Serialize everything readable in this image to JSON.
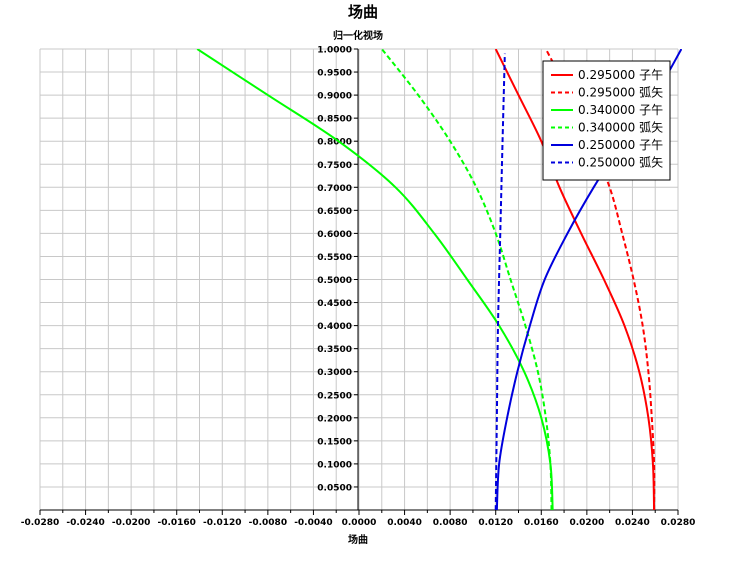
{
  "chart_data": {
    "type": "line",
    "title": "场曲",
    "subtitle": "归一化视场",
    "xlabel": "场曲",
    "ylabel": "",
    "xlim": [
      -0.028,
      0.028
    ],
    "ylim": [
      0.0,
      1.0
    ],
    "grid": true,
    "legend_position": "top-right",
    "x_ticks": [
      "-0.0280",
      "-0.0240",
      "-0.0200",
      "-0.0160",
      "-0.0120",
      "-0.0080",
      "-0.0040",
      "0.0000",
      "0.0040",
      "0.0080",
      "0.0120",
      "0.0160",
      "0.0200",
      "0.0240",
      "0.0280"
    ],
    "y_ticks": [
      "0.0500",
      "0.1000",
      "0.1500",
      "0.2000",
      "0.2500",
      "0.3000",
      "0.3500",
      "0.4000",
      "0.4500",
      "0.5000",
      "0.5500",
      "0.6000",
      "0.6500",
      "0.7000",
      "0.7500",
      "0.8000",
      "0.8500",
      "0.9000",
      "0.9500",
      "1.0000"
    ],
    "series": [
      {
        "name": "0.295000 子午",
        "color": "#ff0000",
        "dash": "solid",
        "points": [
          [
            0.0259,
            0.0
          ],
          [
            0.0258,
            0.1
          ],
          [
            0.0254,
            0.2
          ],
          [
            0.0246,
            0.3
          ],
          [
            0.0233,
            0.4
          ],
          [
            0.0215,
            0.5
          ],
          [
            0.0195,
            0.6
          ],
          [
            0.0176,
            0.7
          ],
          [
            0.016,
            0.8
          ],
          [
            0.014,
            0.9
          ],
          [
            0.012,
            1.0
          ]
        ]
      },
      {
        "name": "0.295000 弧矢",
        "color": "#ff0000",
        "dash": "dashed",
        "points": [
          [
            0.0259,
            0.0
          ],
          [
            0.0259,
            0.1
          ],
          [
            0.0257,
            0.2
          ],
          [
            0.0254,
            0.3
          ],
          [
            0.0249,
            0.4
          ],
          [
            0.0241,
            0.5
          ],
          [
            0.0231,
            0.6
          ],
          [
            0.022,
            0.7
          ],
          [
            0.0203,
            0.8
          ],
          [
            0.0185,
            0.9
          ],
          [
            0.0164,
            1.0
          ]
        ]
      },
      {
        "name": "0.340000 子午",
        "color": "#00ff00",
        "dash": "solid",
        "points": [
          [
            0.017,
            0.0
          ],
          [
            0.0168,
            0.1
          ],
          [
            0.016,
            0.2
          ],
          [
            0.0145,
            0.3
          ],
          [
            0.0123,
            0.4
          ],
          [
            0.0095,
            0.5
          ],
          [
            0.0066,
            0.6
          ],
          [
            0.0032,
            0.7
          ],
          [
            -0.0018,
            0.8
          ],
          [
            -0.008,
            0.9
          ],
          [
            -0.0142,
            1.0
          ]
        ]
      },
      {
        "name": "0.340000 弧矢",
        "color": "#00ff00",
        "dash": "dashed",
        "points": [
          [
            0.0169,
            0.0
          ],
          [
            0.0168,
            0.1
          ],
          [
            0.0164,
            0.2
          ],
          [
            0.0157,
            0.3
          ],
          [
            0.0146,
            0.4
          ],
          [
            0.0133,
            0.5
          ],
          [
            0.012,
            0.6
          ],
          [
            0.0103,
            0.7
          ],
          [
            0.008,
            0.8
          ],
          [
            0.0052,
            0.9
          ],
          [
            0.002,
            1.0
          ]
        ]
      },
      {
        "name": "0.250000 子午",
        "color": "#0000dd",
        "dash": "solid",
        "points": [
          [
            0.0121,
            0.0
          ],
          [
            0.0123,
            0.1
          ],
          [
            0.013,
            0.2
          ],
          [
            0.0139,
            0.3
          ],
          [
            0.015,
            0.4
          ],
          [
            0.0163,
            0.5
          ],
          [
            0.0183,
            0.6
          ],
          [
            0.0206,
            0.7
          ],
          [
            0.0232,
            0.8
          ],
          [
            0.026,
            0.9
          ],
          [
            0.0283,
            1.0
          ]
        ]
      },
      {
        "name": "0.250000 弧矢",
        "color": "#0000dd",
        "dash": "dashed",
        "points": [
          [
            0.012,
            0.0
          ],
          [
            0.0121,
            0.2
          ],
          [
            0.0122,
            0.4
          ],
          [
            0.0124,
            0.6
          ],
          [
            0.0126,
            0.8
          ],
          [
            0.0128,
            0.99
          ]
        ]
      }
    ]
  }
}
